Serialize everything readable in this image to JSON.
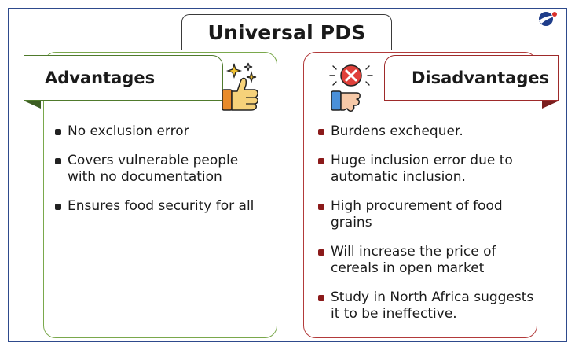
{
  "title": "Universal PDS",
  "advantages": {
    "heading": "Advantages",
    "icon": "thumbs-up-icon",
    "points": [
      "No exclusion error",
      "Covers vulnerable people with no documentation",
      "Ensures food security for all"
    ]
  },
  "disadvantages": {
    "heading": "Disadvantages",
    "icon": "thumbs-down-cross-icon",
    "points": [
      "Burdens exchequer.",
      "Huge inclusion error due to automatic inclusion.",
      "High procurement of food grains",
      "Will increase the price of cereals in open market",
      "Study in North Africa suggests it to be ineffective."
    ]
  },
  "colors": {
    "frame": "#2e4a8c",
    "advantage_border": "#7aa84c",
    "disadvantage_border": "#b23a3a",
    "bullet_right": "#8b1a1a"
  }
}
